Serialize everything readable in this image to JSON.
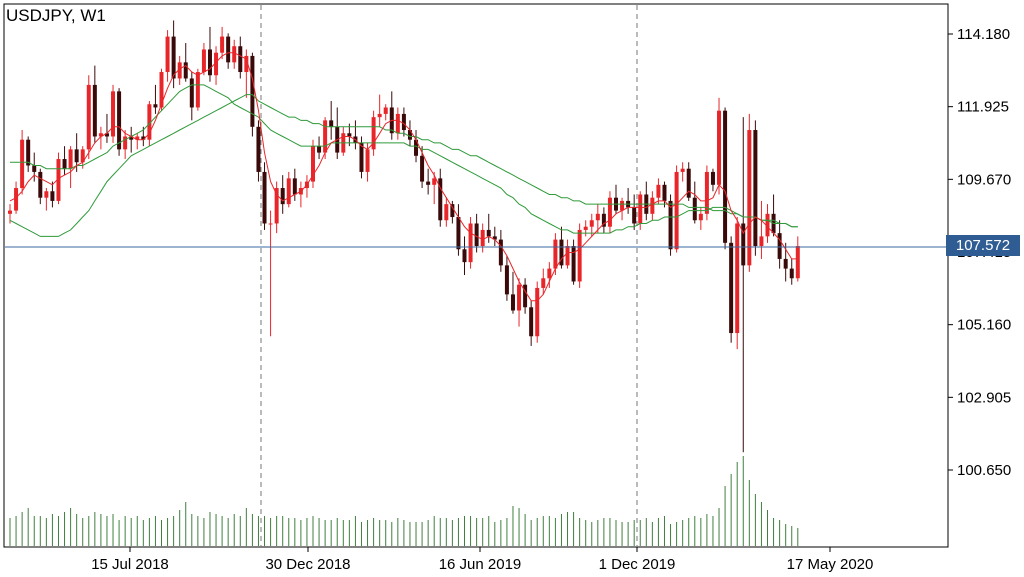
{
  "chart_data": {
    "type": "candlestick",
    "title": "USDJPY, W1",
    "y_axis": {
      "ticks": [
        "114.180",
        "111.925",
        "109.670",
        "107.415",
        "105.160",
        "102.905",
        "100.650"
      ],
      "range": [
        99.0,
        115.4
      ],
      "position": "right"
    },
    "x_axis": {
      "tick_labels": [
        "15 Jul 2018",
        "30 Dec 2018",
        "16 Jun 2019",
        "1 Dec 2019",
        "17 May 2020"
      ],
      "period_separators": [
        "30 Dec 2018",
        "1 Dec 2019"
      ]
    },
    "current_price": "107.572",
    "grid": false,
    "series_colors": {
      "bull": "#e8262a",
      "bear": "#3a0a0a",
      "ma_fast": "#e8262a",
      "ma_slow": "#2e9a3a",
      "volume": "#3f7f3f",
      "price_line": "#3b6aa0"
    },
    "candles": [
      [
        108.6,
        108.9,
        108.3,
        108.7
      ],
      [
        108.7,
        109.6,
        108.6,
        109.4
      ],
      [
        109.4,
        111.2,
        109.2,
        110.9
      ],
      [
        110.9,
        111.0,
        109.9,
        110.1
      ],
      [
        110.1,
        110.5,
        109.6,
        109.9
      ],
      [
        109.9,
        110.0,
        108.9,
        109.1
      ],
      [
        109.1,
        109.4,
        108.7,
        109.3
      ],
      [
        109.3,
        109.6,
        108.8,
        109.0
      ],
      [
        109.0,
        110.5,
        108.9,
        110.3
      ],
      [
        110.3,
        110.7,
        109.8,
        110.0
      ],
      [
        110.0,
        110.7,
        109.4,
        110.6
      ],
      [
        110.6,
        111.1,
        109.9,
        110.2
      ],
      [
        110.2,
        110.7,
        110.0,
        110.6
      ],
      [
        110.6,
        112.9,
        110.3,
        112.6
      ],
      [
        112.6,
        113.2,
        110.8,
        111.0
      ],
      [
        111.0,
        111.3,
        110.6,
        111.1
      ],
      [
        111.1,
        111.7,
        110.8,
        111.0
      ],
      [
        111.0,
        112.6,
        110.8,
        112.4
      ],
      [
        112.4,
        112.5,
        110.4,
        110.6
      ],
      [
        110.6,
        111.2,
        110.3,
        111.0
      ],
      [
        111.0,
        111.3,
        110.5,
        110.9
      ],
      [
        110.9,
        111.1,
        110.6,
        111.0
      ],
      [
        111.0,
        111.3,
        110.7,
        110.9
      ],
      [
        110.9,
        112.1,
        110.7,
        112.0
      ],
      [
        112.0,
        112.6,
        111.7,
        111.9
      ],
      [
        111.9,
        113.1,
        111.8,
        113.0
      ],
      [
        113.0,
        114.3,
        112.7,
        114.1
      ],
      [
        114.1,
        114.6,
        112.5,
        112.8
      ],
      [
        112.8,
        113.5,
        112.6,
        113.3
      ],
      [
        113.3,
        113.9,
        112.7,
        112.8
      ],
      [
        112.8,
        113.0,
        111.5,
        111.9
      ],
      [
        111.9,
        113.1,
        111.8,
        113.0
      ],
      [
        113.0,
        113.9,
        112.9,
        113.7
      ],
      [
        113.7,
        114.4,
        112.7,
        112.9
      ],
      [
        112.9,
        113.8,
        112.6,
        113.6
      ],
      [
        113.6,
        114.4,
        113.4,
        114.1
      ],
      [
        114.1,
        114.2,
        113.1,
        113.3
      ],
      [
        113.3,
        114.0,
        113.1,
        113.8
      ],
      [
        113.8,
        114.1,
        112.8,
        113.0
      ],
      [
        113.0,
        113.7,
        112.2,
        113.5
      ],
      [
        113.5,
        113.6,
        111.0,
        111.3
      ],
      [
        111.3,
        111.5,
        109.6,
        109.9
      ],
      [
        109.9,
        110.2,
        108.1,
        108.3
      ],
      [
        108.3,
        108.7,
        104.8,
        108.3
      ],
      [
        108.3,
        109.6,
        108.0,
        109.4
      ],
      [
        109.4,
        109.8,
        108.6,
        108.9
      ],
      [
        108.9,
        109.9,
        108.8,
        109.7
      ],
      [
        109.7,
        110.0,
        109.0,
        109.2
      ],
      [
        109.2,
        109.6,
        108.8,
        109.4
      ],
      [
        109.4,
        109.8,
        109.1,
        109.6
      ],
      [
        109.6,
        110.9,
        109.4,
        110.7
      ],
      [
        110.7,
        111.0,
        110.3,
        110.5
      ],
      [
        110.5,
        111.6,
        110.3,
        111.5
      ],
      [
        111.5,
        112.1,
        110.9,
        111.3
      ],
      [
        111.3,
        111.9,
        110.3,
        110.5
      ],
      [
        110.5,
        111.3,
        110.4,
        111.1
      ],
      [
        111.1,
        111.4,
        110.7,
        111.0
      ],
      [
        111.0,
        111.5,
        110.6,
        110.8
      ],
      [
        110.8,
        111.0,
        109.7,
        109.9
      ],
      [
        109.9,
        110.8,
        109.6,
        110.6
      ],
      [
        110.6,
        111.8,
        110.4,
        111.6
      ],
      [
        111.6,
        112.3,
        111.3,
        111.7
      ],
      [
        111.7,
        112.0,
        111.5,
        111.9
      ],
      [
        111.9,
        112.4,
        110.9,
        111.1
      ],
      [
        111.1,
        111.9,
        110.9,
        111.7
      ],
      [
        111.7,
        111.9,
        111.0,
        111.2
      ],
      [
        111.2,
        111.5,
        110.7,
        110.9
      ],
      [
        110.9,
        111.2,
        110.2,
        110.4
      ],
      [
        110.4,
        110.7,
        109.4,
        109.6
      ],
      [
        109.6,
        110.0,
        109.2,
        109.5
      ],
      [
        109.5,
        109.9,
        108.9,
        109.7
      ],
      [
        109.7,
        110.0,
        108.2,
        108.4
      ],
      [
        108.4,
        109.1,
        108.2,
        108.9
      ],
      [
        108.9,
        109.0,
        108.3,
        108.5
      ],
      [
        108.5,
        108.9,
        107.3,
        107.5
      ],
      [
        107.5,
        107.9,
        106.7,
        107.1
      ],
      [
        107.1,
        108.5,
        106.9,
        108.3
      ],
      [
        108.3,
        108.6,
        107.4,
        107.6
      ],
      [
        107.6,
        108.3,
        107.4,
        108.1
      ],
      [
        108.1,
        108.6,
        107.7,
        107.9
      ],
      [
        107.9,
        108.2,
        107.6,
        107.8
      ],
      [
        107.8,
        108.1,
        106.8,
        107.0
      ],
      [
        107.0,
        107.3,
        105.9,
        106.1
      ],
      [
        106.1,
        106.8,
        105.5,
        105.6
      ],
      [
        105.6,
        106.6,
        105.1,
        106.4
      ],
      [
        106.4,
        106.6,
        105.5,
        105.7
      ],
      [
        105.7,
        105.9,
        104.5,
        104.8
      ],
      [
        104.8,
        106.5,
        104.6,
        106.3
      ],
      [
        106.3,
        106.9,
        106.1,
        106.6
      ],
      [
        106.6,
        107.1,
        106.3,
        106.9
      ],
      [
        106.9,
        108.0,
        106.7,
        107.8
      ],
      [
        107.8,
        108.2,
        106.9,
        107.0
      ],
      [
        107.0,
        107.8,
        106.9,
        107.6
      ],
      [
        107.6,
        107.8,
        106.4,
        106.5
      ],
      [
        106.5,
        108.3,
        106.3,
        108.1
      ],
      [
        108.1,
        108.4,
        107.9,
        108.2
      ],
      [
        108.2,
        108.6,
        107.9,
        108.4
      ],
      [
        108.4,
        108.9,
        108.0,
        108.6
      ],
      [
        108.6,
        108.8,
        108.0,
        108.2
      ],
      [
        108.2,
        109.3,
        108.0,
        109.1
      ],
      [
        109.1,
        109.5,
        108.6,
        108.7
      ],
      [
        108.7,
        109.1,
        108.4,
        109.0
      ],
      [
        109.0,
        109.4,
        108.6,
        108.8
      ],
      [
        108.8,
        109.2,
        108.1,
        108.3
      ],
      [
        108.3,
        109.3,
        108.1,
        109.2
      ],
      [
        109.2,
        109.6,
        108.4,
        108.6
      ],
      [
        108.6,
        109.3,
        108.4,
        109.1
      ],
      [
        109.1,
        109.7,
        108.9,
        109.5
      ],
      [
        109.5,
        109.6,
        108.8,
        109.0
      ],
      [
        109.0,
        109.2,
        107.3,
        107.5
      ],
      [
        107.5,
        110.1,
        107.4,
        109.9
      ],
      [
        109.9,
        110.2,
        109.6,
        110.0
      ],
      [
        110.0,
        110.2,
        109.0,
        109.1
      ],
      [
        109.1,
        109.6,
        108.3,
        108.4
      ],
      [
        108.4,
        108.8,
        108.1,
        108.6
      ],
      [
        108.6,
        110.1,
        108.4,
        109.9
      ],
      [
        109.9,
        110.0,
        109.3,
        109.5
      ],
      [
        109.5,
        112.2,
        109.2,
        111.8
      ],
      [
        111.8,
        111.9,
        107.5,
        107.7
      ],
      [
        107.7,
        107.9,
        104.6,
        104.9
      ],
      [
        104.9,
        108.5,
        104.4,
        108.3
      ],
      [
        108.3,
        111.6,
        101.2,
        107.0
      ],
      [
        107.0,
        111.7,
        106.8,
        111.2
      ],
      [
        111.2,
        111.5,
        107.3,
        107.6
      ],
      [
        107.6,
        109.0,
        107.2,
        107.9
      ],
      [
        107.9,
        108.9,
        107.7,
        108.6
      ],
      [
        108.6,
        109.2,
        107.9,
        108.0
      ],
      [
        108.0,
        108.4,
        106.9,
        107.2
      ],
      [
        107.2,
        107.7,
        106.5,
        106.9
      ],
      [
        106.9,
        107.2,
        106.4,
        106.6
      ],
      [
        106.6,
        107.9,
        106.5,
        107.6
      ]
    ],
    "ma_fast": [
      109.0,
      109.1,
      109.3,
      109.6,
      109.8,
      109.7,
      109.6,
      109.5,
      109.7,
      109.8,
      109.9,
      110.1,
      110.2,
      110.5,
      110.8,
      111.0,
      111.1,
      111.3,
      111.3,
      111.1,
      111.0,
      110.9,
      110.9,
      111.1,
      111.5,
      112.0,
      112.5,
      112.9,
      113.1,
      113.2,
      113.0,
      112.9,
      113.0,
      113.1,
      113.3,
      113.5,
      113.6,
      113.6,
      113.5,
      113.4,
      112.8,
      111.8,
      110.5,
      109.6,
      109.2,
      109.0,
      109.1,
      109.2,
      109.3,
      109.5,
      109.8,
      110.1,
      110.5,
      110.8,
      110.9,
      111.0,
      111.0,
      110.9,
      110.7,
      110.6,
      110.8,
      111.1,
      111.4,
      111.5,
      111.5,
      111.4,
      111.2,
      110.9,
      110.5,
      110.1,
      109.8,
      109.4,
      109.1,
      108.8,
      108.5,
      108.2,
      108.0,
      107.9,
      107.8,
      107.9,
      107.8,
      107.6,
      107.3,
      106.9,
      106.5,
      106.2,
      105.9,
      105.9,
      106.1,
      106.5,
      106.9,
      107.2,
      107.4,
      107.4,
      107.5,
      107.7,
      107.9,
      108.1,
      108.3,
      108.4,
      108.6,
      108.7,
      108.8,
      108.8,
      108.8,
      108.8,
      108.9,
      109.0,
      109.0,
      108.8,
      108.9,
      109.1,
      109.3,
      109.2,
      109.0,
      109.0,
      109.1,
      109.5,
      109.3,
      108.7,
      108.4,
      108.0,
      108.3,
      108.5,
      108.4,
      108.2,
      108.0,
      107.8,
      107.5,
      107.2,
      107.2
    ],
    "ma_slow": [
      110.2,
      110.2,
      110.2,
      110.2,
      110.1,
      110.1,
      110.0,
      110.0,
      110.0,
      110.0,
      110.0,
      110.1,
      110.1,
      110.2,
      110.3,
      110.4,
      110.5,
      110.7,
      110.8,
      110.9,
      111.0,
      111.1,
      111.2,
      111.4,
      111.6,
      111.8,
      112.0,
      112.2,
      112.4,
      112.5,
      112.6,
      112.6,
      112.6,
      112.5,
      112.4,
      112.3,
      112.2,
      112.0,
      111.9,
      111.8,
      111.7,
      111.6,
      111.4,
      111.2,
      111.1,
      111.0,
      110.9,
      110.8,
      110.7,
      110.7,
      110.7,
      110.7,
      110.7,
      110.8,
      110.8,
      110.8,
      110.8,
      110.8,
      110.8,
      110.8,
      110.8,
      110.8,
      110.8,
      110.8,
      110.8,
      110.8,
      110.7,
      110.7,
      110.6,
      110.6,
      110.5,
      110.4,
      110.3,
      110.2,
      110.1,
      110.0,
      109.9,
      109.8,
      109.7,
      109.6,
      109.5,
      109.4,
      109.2,
      109.1,
      108.9,
      108.8,
      108.6,
      108.5,
      108.4,
      108.3,
      108.2,
      108.1,
      108.1,
      108.0,
      108.0,
      108.0,
      108.0,
      108.0,
      108.0,
      108.0,
      108.1,
      108.1,
      108.2,
      108.2,
      108.3,
      108.3,
      108.4,
      108.4,
      108.5,
      108.5,
      108.5,
      108.6,
      108.7,
      108.7,
      108.7,
      108.7,
      108.8,
      108.8,
      108.8,
      108.7,
      108.6,
      108.5,
      108.5,
      108.5,
      108.4,
      108.4,
      108.4,
      108.3,
      108.3,
      108.2,
      108.2
    ],
    "ma_long": [
      108.4,
      108.3,
      108.2,
      108.1,
      108.0,
      107.9,
      107.9,
      107.9,
      107.9,
      108.0,
      108.1,
      108.3,
      108.5,
      108.7,
      109.0,
      109.3,
      109.6,
      109.8,
      110.0,
      110.2,
      110.4,
      110.5,
      110.6,
      110.7,
      110.8,
      110.9,
      111.0,
      111.1,
      111.2,
      111.3,
      111.4,
      111.5,
      111.6,
      111.7,
      111.8,
      111.9,
      112.0,
      112.1,
      112.2,
      112.3,
      112.3,
      112.1,
      112.0,
      111.9,
      111.8,
      111.7,
      111.6,
      111.6,
      111.5,
      111.5,
      111.4,
      111.4,
      111.3,
      111.3,
      111.3,
      111.3,
      111.3,
      111.3,
      111.3,
      111.3,
      111.3,
      111.3,
      111.2,
      111.2,
      111.1,
      111.1,
      111.0,
      111.0,
      110.9,
      110.9,
      110.8,
      110.8,
      110.7,
      110.6,
      110.6,
      110.5,
      110.4,
      110.4,
      110.3,
      110.2,
      110.1,
      110.0,
      109.9,
      109.8,
      109.7,
      109.6,
      109.5,
      109.4,
      109.3,
      109.2,
      109.2,
      109.1,
      109.1,
      109.0,
      109.0,
      108.9,
      108.9,
      108.9,
      108.9,
      108.9,
      108.9,
      108.9,
      108.9,
      108.9,
      108.9,
      108.9,
      108.9,
      108.9,
      108.9,
      108.9,
      108.9,
      108.9,
      108.8,
      108.8,
      108.8,
      108.8,
      108.7,
      108.7,
      108.7,
      108.6,
      108.6,
      108.5,
      108.5,
      108.5,
      108.4,
      108.4,
      108.3,
      108.3,
      108.3,
      108.2,
      108.2
    ],
    "volumes": [
      28,
      30,
      34,
      38,
      30,
      30,
      28,
      32,
      30,
      34,
      38,
      32,
      28,
      30,
      34,
      32,
      30,
      32,
      26,
      30,
      28,
      30,
      26,
      28,
      30,
      26,
      28,
      30,
      36,
      44,
      32,
      30,
      28,
      34,
      32,
      30,
      28,
      32,
      30,
      38,
      32,
      30,
      30,
      28,
      30,
      30,
      28,
      28,
      26,
      28,
      30,
      28,
      26,
      26,
      28,
      26,
      26,
      30,
      24,
      26,
      28,
      26,
      26,
      24,
      28,
      26,
      24,
      24,
      24,
      26,
      30,
      28,
      28,
      26,
      28,
      30,
      30,
      28,
      28,
      30,
      24,
      26,
      28,
      40,
      38,
      32,
      26,
      28,
      30,
      30,
      28,
      32,
      34,
      34,
      28,
      26,
      24,
      26,
      28,
      28,
      26,
      24,
      24,
      26,
      26,
      28,
      24,
      28,
      30,
      22,
      24,
      26,
      28,
      30,
      28,
      32,
      30,
      38,
      60,
      72,
      84,
      90,
      66,
      52,
      44,
      36,
      28,
      26,
      22,
      20,
      18
    ]
  }
}
